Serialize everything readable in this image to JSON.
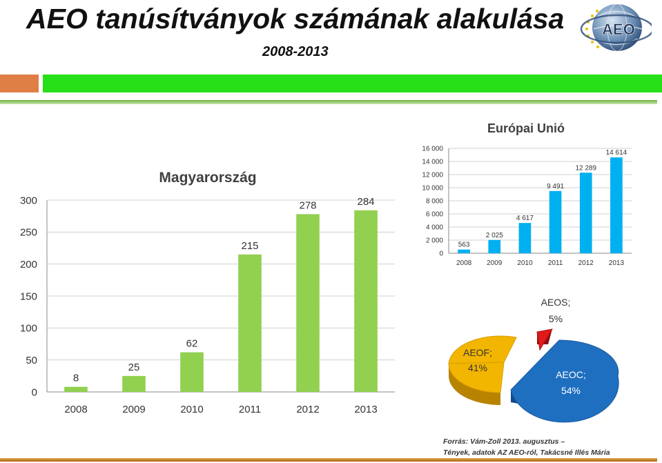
{
  "header": {
    "title": "AEO tanúsítványok számának alakulása",
    "subtitle": "2008-2013",
    "logo_text": "AEO"
  },
  "colors": {
    "accent_orange": "#e07f45",
    "accent_green": "#27e018",
    "hu_bar": "#92d050",
    "eu_bar": "#00b0f0",
    "pie_aeoc": "#1f6fc0",
    "pie_aeof": "#f2b500",
    "pie_aeos": "#e0191b"
  },
  "chart_data": [
    {
      "type": "bar",
      "title": "Magyarország",
      "categories": [
        "2008",
        "2009",
        "2010",
        "2011",
        "2012",
        "2013"
      ],
      "values": [
        8,
        25,
        62,
        215,
        278,
        284
      ],
      "value_labels": [
        "8",
        "25",
        "62",
        "215",
        "278",
        "284"
      ],
      "ylim": [
        0,
        300
      ],
      "yticks": [
        0,
        50,
        100,
        150,
        200,
        250,
        300
      ],
      "ytick_labels": [
        "0",
        "50",
        "100",
        "150",
        "200",
        "250",
        "300"
      ],
      "grid": true,
      "xlabel": "",
      "ylabel": ""
    },
    {
      "type": "bar",
      "title": "Európai Unió",
      "categories": [
        "2008",
        "2009",
        "2010",
        "2011",
        "2012",
        "2013"
      ],
      "values": [
        563,
        2025,
        4617,
        9491,
        12289,
        14614
      ],
      "value_labels": [
        "563",
        "2 025",
        "4 617",
        "9 491",
        "12 289",
        "14 614"
      ],
      "ylim": [
        0,
        16000
      ],
      "yticks": [
        0,
        2000,
        4000,
        6000,
        8000,
        10000,
        12000,
        14000,
        16000
      ],
      "ytick_labels": [
        "0",
        "2 000",
        "4 000",
        "6 000",
        "8 000",
        "10 000",
        "12 000",
        "14 000",
        "16 000"
      ],
      "grid": true,
      "xlabel": "",
      "ylabel": ""
    },
    {
      "type": "pie",
      "title": "",
      "slices": [
        {
          "label": "AEOC",
          "value": 54,
          "display": "54%",
          "color": "#1f6fc0"
        },
        {
          "label": "AEOS",
          "value": 5,
          "display": "5%",
          "color": "#e0191b"
        },
        {
          "label": "AEOF",
          "value": 41,
          "display": "41%",
          "color": "#f2b500"
        }
      ],
      "style": "3d-exploded"
    }
  ],
  "footer": {
    "source_line1": "Forrás: Vám-Zoll 2013. augusztus –",
    "source_line2": "Tények, adatok AZ AEO-ról, Takácsné Illés Mária"
  }
}
